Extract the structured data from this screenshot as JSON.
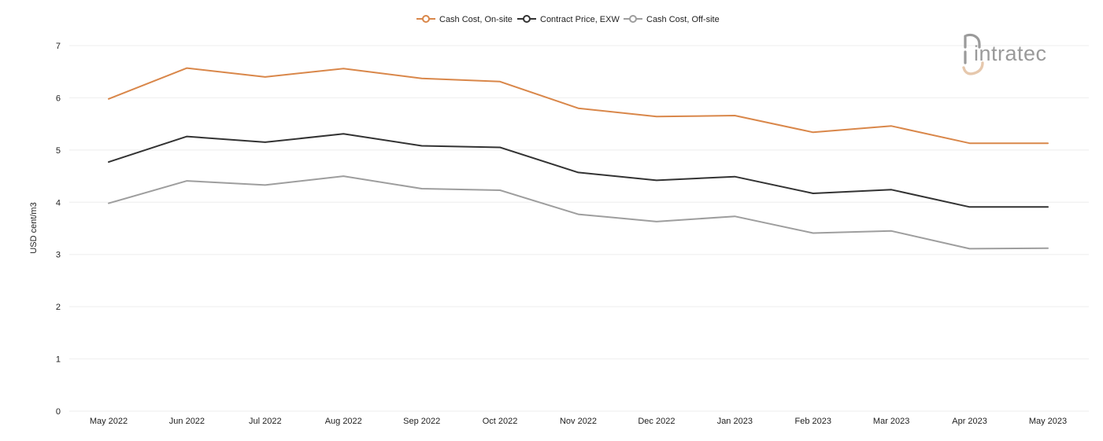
{
  "logo": {
    "text": "intratec"
  },
  "chart_data": {
    "type": "line",
    "xlabel": "",
    "ylabel": "USD cent/m3",
    "ylim": [
      0,
      7
    ],
    "yticks": [
      0,
      1,
      2,
      3,
      4,
      5,
      6,
      7
    ],
    "grid": true,
    "legend_position": "top-center",
    "categories": [
      "May 2022",
      "Jun 2022",
      "Jul 2022",
      "Aug 2022",
      "Sep 2022",
      "Oct 2022",
      "Nov 2022",
      "Dec 2022",
      "Jan 2023",
      "Feb 2023",
      "Mar 2023",
      "Apr 2023",
      "May 2023"
    ],
    "series": [
      {
        "name": "Cash Cost, On-site",
        "color": "#d9874a",
        "values": [
          5.98,
          6.57,
          6.4,
          6.56,
          6.37,
          6.31,
          5.8,
          5.64,
          5.66,
          5.34,
          5.46,
          5.13,
          5.13
        ]
      },
      {
        "name": "Contract Price, EXW",
        "color": "#333333",
        "values": [
          4.77,
          5.26,
          5.15,
          5.31,
          5.08,
          5.05,
          4.57,
          4.42,
          4.49,
          4.17,
          4.24,
          3.91,
          3.91
        ]
      },
      {
        "name": "Cash Cost, Off-site",
        "color": "#9e9e9e",
        "values": [
          3.98,
          4.41,
          4.33,
          4.5,
          4.26,
          4.23,
          3.77,
          3.63,
          3.73,
          3.41,
          3.45,
          3.11,
          3.12
        ]
      }
    ]
  }
}
